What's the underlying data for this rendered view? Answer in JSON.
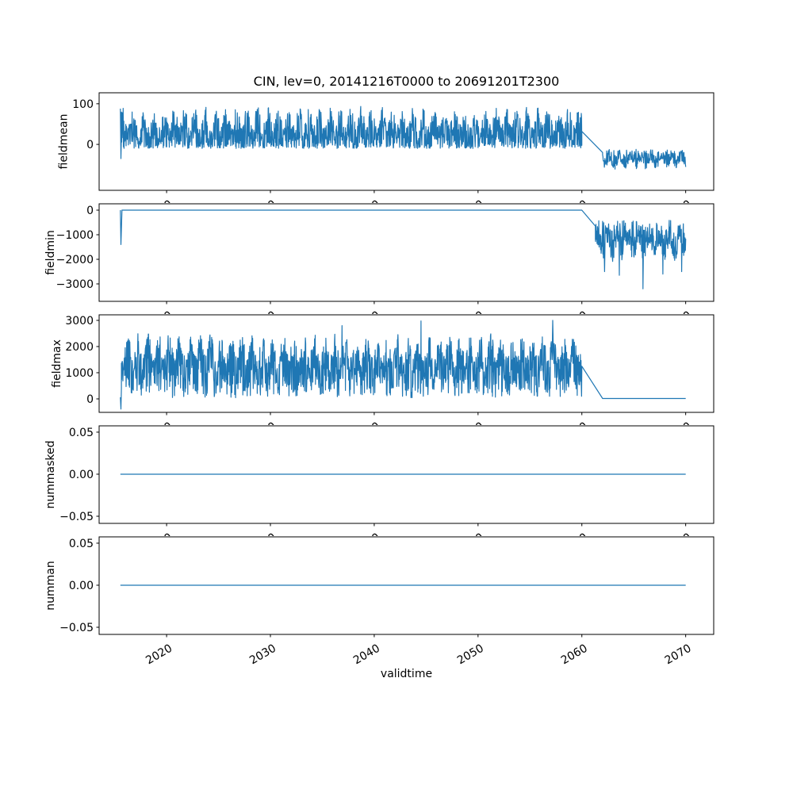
{
  "figure": {
    "background": "#ffffff",
    "axes_color": "#000000",
    "line_color": "#1f77b4"
  },
  "chart_data": {
    "type": "line",
    "title": "CIN, lev=0, 20141216T0000 to 20691201T2300",
    "xlabel": "validtime",
    "grid": false,
    "legend": "none",
    "x_range": [
      2013.5,
      2072.7
    ],
    "x_data_range": [
      2015.55,
      2070
    ],
    "x_ticks": [
      {
        "v": 2020,
        "label": "2020"
      },
      {
        "v": 2030,
        "label": "2030"
      },
      {
        "v": 2040,
        "label": "2040"
      },
      {
        "v": 2050,
        "label": "2050"
      },
      {
        "v": 2060,
        "label": "2060"
      },
      {
        "v": 2070,
        "label": "2070"
      }
    ],
    "band_points_per_year": 36,
    "subplots": [
      {
        "name": "fieldmean",
        "ylabel": "fieldmean",
        "ylim": [
          -113,
          127
        ],
        "yticks": [
          {
            "v": 100,
            "label": "100"
          },
          {
            "v": 0,
            "label": "0"
          }
        ],
        "segments": [
          {
            "kind": "line",
            "points": [
              [
                2015.55,
                88
              ],
              [
                2015.6,
                -35
              ],
              [
                2015.65,
                20
              ]
            ]
          },
          {
            "kind": "band",
            "x0": 2015.65,
            "x1": 2060,
            "lo": -10,
            "hi": 95,
            "bias": 1.2,
            "dir": "up",
            "annual": 0.45,
            "phase": 0,
            "seed": 11
          },
          {
            "kind": "line",
            "points": [
              [
                2060,
                32
              ],
              [
                2062,
                -20
              ]
            ]
          },
          {
            "kind": "band",
            "x0": 2062,
            "x1": 2070,
            "lo": -62,
            "hi": -12,
            "bias": 0.8,
            "dir": "down",
            "annual": 0.4,
            "phase": 0.6,
            "seed": 12
          }
        ]
      },
      {
        "name": "fieldmin",
        "ylabel": "fieldmin",
        "ylim": [
          -3710,
          258
        ],
        "yticks": [
          {
            "v": 0,
            "label": "0"
          },
          {
            "v": -1000,
            "label": "−1000"
          },
          {
            "v": -2000,
            "label": "−2000"
          },
          {
            "v": -3000,
            "label": "−3000"
          }
        ],
        "segments": [
          {
            "kind": "line",
            "points": [
              [
                2015.55,
                0
              ],
              [
                2015.6,
                -1400
              ],
              [
                2015.7,
                0
              ]
            ]
          },
          {
            "kind": "flat",
            "x0": 2015.7,
            "x1": 2060,
            "y": 0
          },
          {
            "kind": "line",
            "points": [
              [
                2060,
                0
              ],
              [
                2061.3,
                -650
              ]
            ]
          },
          {
            "kind": "band",
            "x0": 2061.3,
            "x1": 2070,
            "lo": -2100,
            "hi": -350,
            "bias": 0.7,
            "dir": "down",
            "annual": 0.4,
            "phase": 0.8,
            "seed": 13,
            "spikes": [
              [
                2062.2,
                -2500
              ],
              [
                2063.6,
                -2650
              ],
              [
                2065.9,
                -3200
              ],
              [
                2067.8,
                -2600
              ],
              [
                2069.6,
                -2500
              ]
            ]
          }
        ]
      },
      {
        "name": "fieldmax",
        "ylabel": "fieldmax",
        "ylim": [
          -515,
          3212
        ],
        "yticks": [
          {
            "v": 3000,
            "label": "3000"
          },
          {
            "v": 2000,
            "label": "2000"
          },
          {
            "v": 1000,
            "label": "1000"
          },
          {
            "v": 0,
            "label": "0"
          }
        ],
        "segments": [
          {
            "kind": "line",
            "points": [
              [
                2015.55,
                60
              ],
              [
                2015.6,
                -390
              ],
              [
                2015.65,
                400
              ]
            ]
          },
          {
            "kind": "band",
            "x0": 2015.65,
            "x1": 2060,
            "lo": 30,
            "hi": 2500,
            "bias": 0.75,
            "dir": "up",
            "annual": 0.35,
            "phase": 1.5,
            "seed": 14,
            "spikes": [
              [
                2036.9,
                2800
              ],
              [
                2044.5,
                2980
              ],
              [
                2057.2,
                3000
              ]
            ]
          },
          {
            "kind": "line",
            "points": [
              [
                2060,
                1250
              ],
              [
                2062,
                15
              ]
            ]
          },
          {
            "kind": "flat",
            "x0": 2062,
            "x1": 2070,
            "y": 15
          }
        ]
      },
      {
        "name": "nummasked",
        "ylabel": "nummasked",
        "ylim": [
          -0.0585,
          0.0575
        ],
        "yticks": [
          {
            "v": 0.05,
            "label": "0.05"
          },
          {
            "v": 0,
            "label": "0.00"
          },
          {
            "v": -0.05,
            "label": "−0.05"
          }
        ],
        "segments": [
          {
            "kind": "flat",
            "x0": 2015.55,
            "x1": 2070,
            "y": 0
          }
        ]
      },
      {
        "name": "numman",
        "ylabel": "numman",
        "ylim": [
          -0.0585,
          0.0575
        ],
        "yticks": [
          {
            "v": 0.05,
            "label": "0.05"
          },
          {
            "v": 0,
            "label": "0.00"
          },
          {
            "v": -0.05,
            "label": "−0.05"
          }
        ],
        "segments": [
          {
            "kind": "flat",
            "x0": 2015.55,
            "x1": 2070,
            "y": 0
          }
        ]
      }
    ]
  }
}
